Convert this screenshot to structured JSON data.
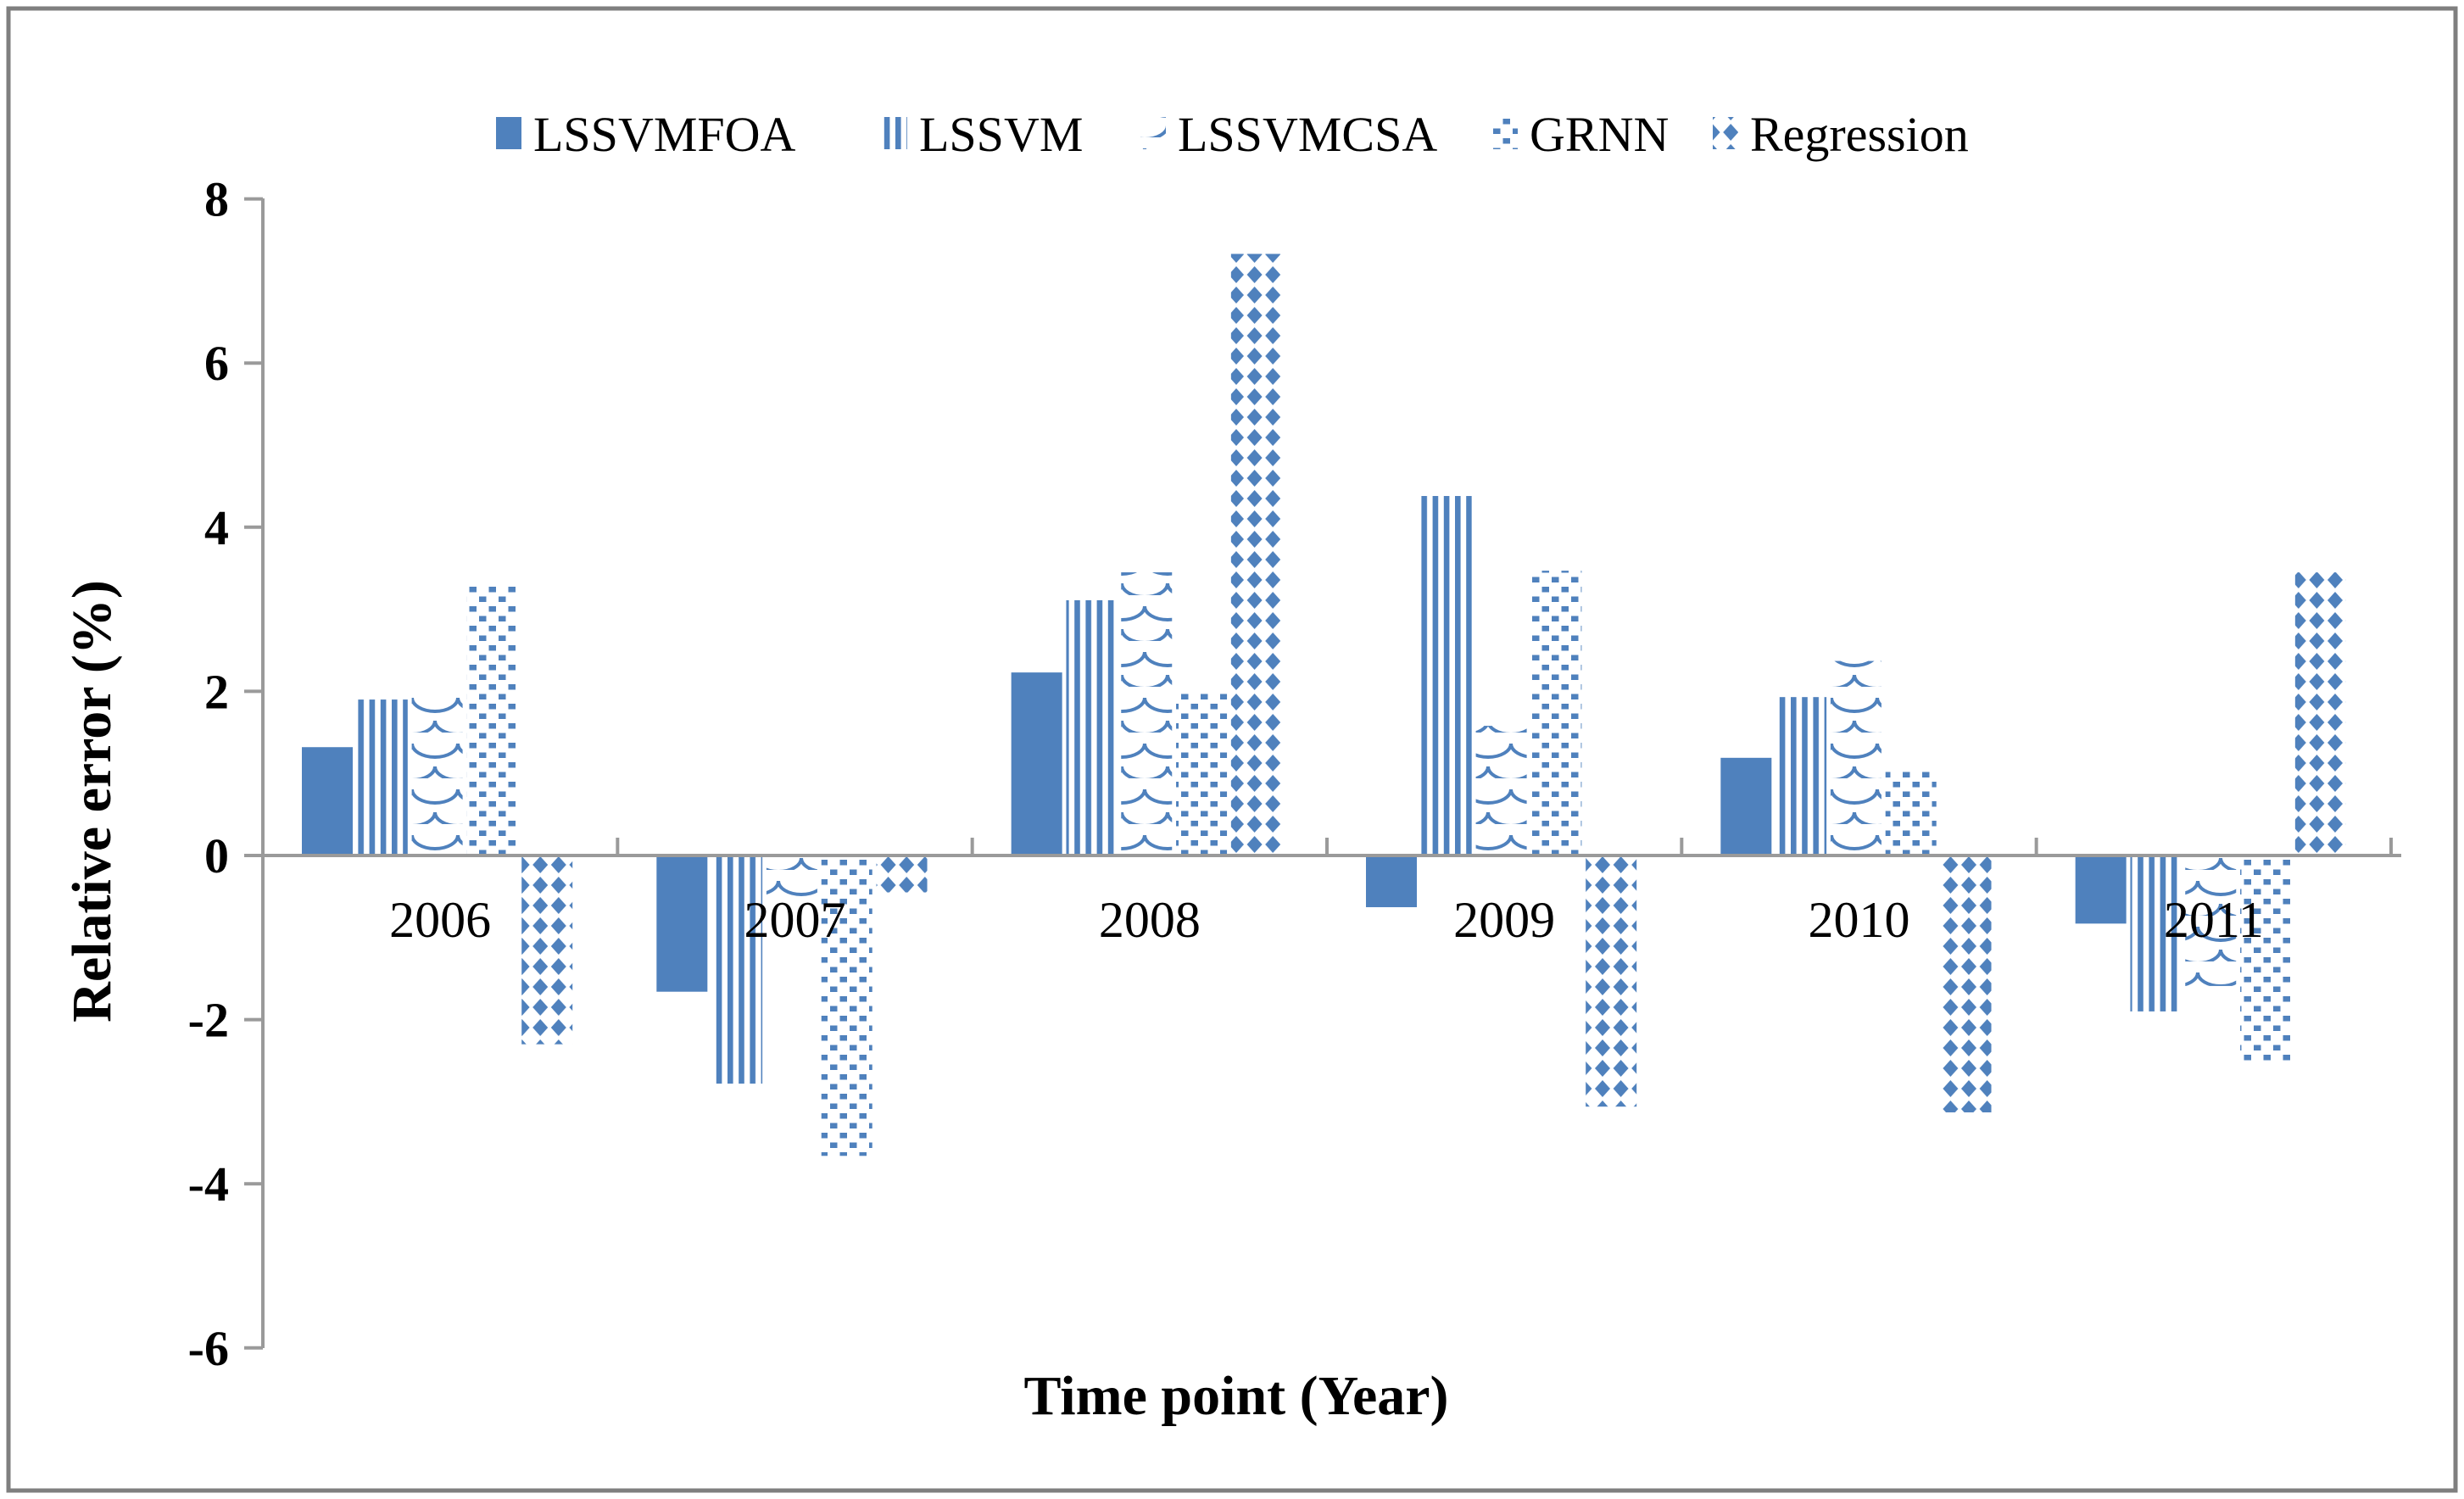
{
  "figure": {
    "bar_color": "#4f81bd",
    "axis_color": "#9a9a9a",
    "border_color": "#7f7f7f",
    "background": "#ffffff"
  },
  "chart_data": {
    "type": "bar",
    "title": "",
    "xlabel": "Time point (Year)",
    "ylabel": "Relative error (%)",
    "ylim": [
      -6,
      8
    ],
    "y_tick_step": 2,
    "y_ticks": [
      8,
      6,
      4,
      2,
      0,
      -2,
      -4,
      -6
    ],
    "grid": false,
    "legend_position": "top",
    "categories": [
      "2006",
      "2007",
      "2008",
      "2009",
      "2010",
      "2011"
    ],
    "series": [
      {
        "name": "LSSVMFOA",
        "pattern": "solid",
        "values": [
          1.32,
          -1.66,
          2.23,
          -0.63,
          1.19,
          -0.83
        ]
      },
      {
        "name": "LSSVM",
        "pattern": "vstripes",
        "values": [
          1.9,
          -2.78,
          3.11,
          4.38,
          1.93,
          -1.9
        ]
      },
      {
        "name": "LSSVMCSA",
        "pattern": "scales",
        "values": [
          1.95,
          -0.52,
          3.45,
          1.58,
          2.37,
          -1.59
        ]
      },
      {
        "name": "GRNN",
        "pattern": "dots",
        "values": [
          3.31,
          -3.66,
          1.97,
          3.47,
          1.06,
          -2.51
        ]
      },
      {
        "name": "Regression",
        "pattern": "diamonds",
        "values": [
          -2.3,
          -0.45,
          7.33,
          -3.06,
          -3.13,
          3.45
        ]
      }
    ]
  }
}
